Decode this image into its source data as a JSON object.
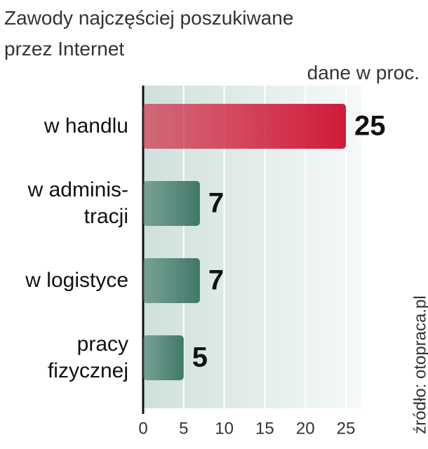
{
  "chart_data": {
    "type": "bar",
    "orientation": "horizontal",
    "title": "Zawody najczęściej poszukiwane przez Internet",
    "subtitle": "dane w proc.",
    "source": "źródło: otopraca.pl",
    "categories": [
      "w handlu",
      "w adminis-\ntracji",
      "w logistyce",
      "pracy\nfizycznej"
    ],
    "values": [
      25,
      7,
      7,
      5
    ],
    "colors": [
      "#cf1a38",
      "#3f7868",
      "#3f7868",
      "#3f7868"
    ],
    "xlim": [
      0,
      27
    ],
    "xticks": [
      0,
      5,
      10,
      15,
      20,
      25
    ],
    "grid": true
  }
}
